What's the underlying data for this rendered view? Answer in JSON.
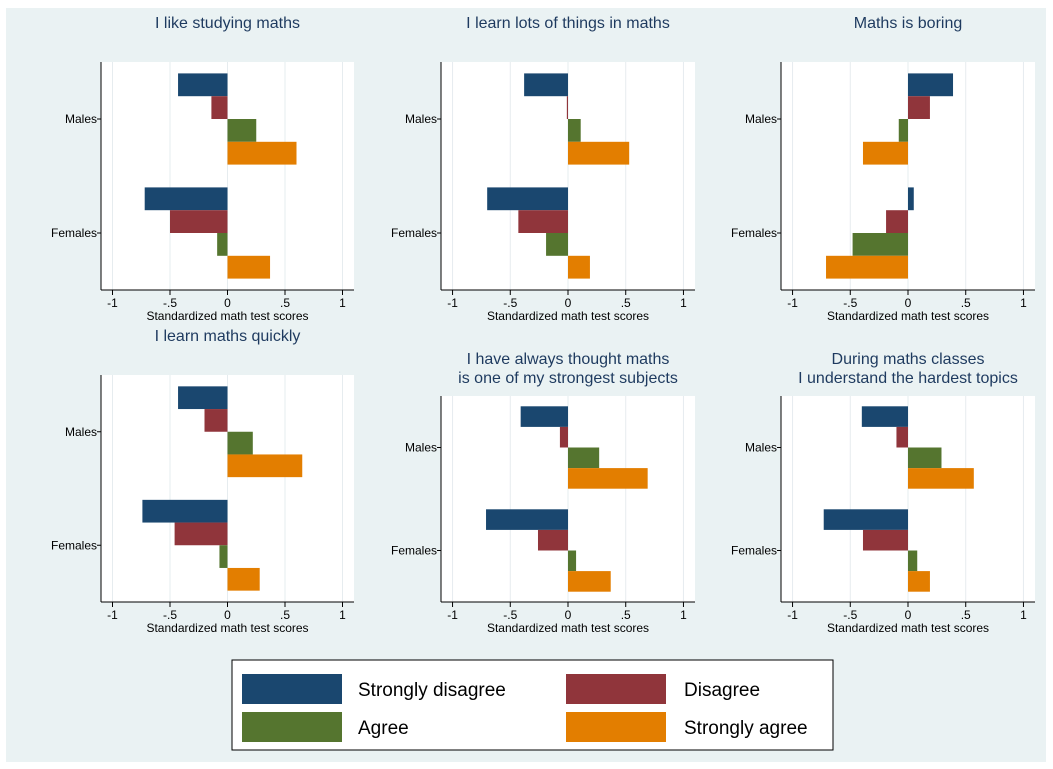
{
  "colors": {
    "background": "#eaf2f3",
    "plot_background": "#ffffff",
    "strongly_disagree": "#1a476f",
    "disagree": "#90353b",
    "agree": "#55752f",
    "strongly_agree": "#e37e00",
    "title_text": "#1e3a5f",
    "gridline": "#e6ecef"
  },
  "legend": {
    "items": [
      {
        "key": "strongly_disagree",
        "label": "Strongly disagree"
      },
      {
        "key": "disagree",
        "label": "Disagree"
      },
      {
        "key": "agree",
        "label": "Agree"
      },
      {
        "key": "strongly_agree",
        "label": "Strongly agree"
      }
    ]
  },
  "chart_data": [
    {
      "type": "bar",
      "orientation": "horizontal",
      "title": "I like studying maths",
      "xlabel": "Standardized math test scores",
      "xlim": [
        -1.1,
        1.1
      ],
      "xticks": [
        {
          "v": -1,
          "label": "-1"
        },
        {
          "v": -0.5,
          "label": "-.5"
        },
        {
          "v": 0,
          "label": "0"
        },
        {
          "v": 0.5,
          "label": ".5"
        },
        {
          "v": 1,
          "label": "1"
        }
      ],
      "categories": [
        "Males",
        "Females"
      ],
      "series": [
        {
          "name": "Strongly disagree",
          "key": "strongly_disagree",
          "values": [
            -0.43,
            -0.72
          ]
        },
        {
          "name": "Disagree",
          "key": "disagree",
          "values": [
            -0.14,
            -0.5
          ]
        },
        {
          "name": "Agree",
          "key": "agree",
          "values": [
            0.25,
            -0.09
          ]
        },
        {
          "name": "Strongly agree",
          "key": "strongly_agree",
          "values": [
            0.6,
            0.37
          ]
        }
      ]
    },
    {
      "type": "bar",
      "orientation": "horizontal",
      "title": "I learn lots of things in maths",
      "xlabel": "Standardized math test scores",
      "xlim": [
        -1.1,
        1.1
      ],
      "xticks": [
        {
          "v": -1,
          "label": "-1"
        },
        {
          "v": -0.5,
          "label": "-.5"
        },
        {
          "v": 0,
          "label": "0"
        },
        {
          "v": 0.5,
          "label": ".5"
        },
        {
          "v": 1,
          "label": "1"
        }
      ],
      "categories": [
        "Males",
        "Females"
      ],
      "series": [
        {
          "name": "Strongly disagree",
          "key": "strongly_disagree",
          "values": [
            -0.38,
            -0.7
          ]
        },
        {
          "name": "Disagree",
          "key": "disagree",
          "values": [
            -0.01,
            -0.43
          ]
        },
        {
          "name": "Agree",
          "key": "agree",
          "values": [
            0.11,
            -0.19
          ]
        },
        {
          "name": "Strongly agree",
          "key": "strongly_agree",
          "values": [
            0.53,
            0.19
          ]
        }
      ]
    },
    {
      "type": "bar",
      "orientation": "horizontal",
      "title": "Maths is boring",
      "xlabel": "Standardized math test scores",
      "xlim": [
        -1.1,
        1.1
      ],
      "xticks": [
        {
          "v": -1,
          "label": "-1"
        },
        {
          "v": -0.5,
          "label": "-.5"
        },
        {
          "v": 0,
          "label": "0"
        },
        {
          "v": 0.5,
          "label": ".5"
        },
        {
          "v": 1,
          "label": "1"
        }
      ],
      "categories": [
        "Males",
        "Females"
      ],
      "series": [
        {
          "name": "Strongly disagree",
          "key": "strongly_disagree",
          "values": [
            0.39,
            0.05
          ]
        },
        {
          "name": "Disagree",
          "key": "disagree",
          "values": [
            0.19,
            -0.19
          ]
        },
        {
          "name": "Agree",
          "key": "agree",
          "values": [
            -0.08,
            -0.48
          ]
        },
        {
          "name": "Strongly agree",
          "key": "strongly_agree",
          "values": [
            -0.39,
            -0.71
          ]
        }
      ]
    },
    {
      "type": "bar",
      "orientation": "horizontal",
      "title": "I learn maths quickly",
      "xlabel": "Standardized math test scores",
      "xlim": [
        -1.1,
        1.1
      ],
      "xticks": [
        {
          "v": -1,
          "label": "-1"
        },
        {
          "v": -0.5,
          "label": "-.5"
        },
        {
          "v": 0,
          "label": "0"
        },
        {
          "v": 0.5,
          "label": ".5"
        },
        {
          "v": 1,
          "label": "1"
        }
      ],
      "categories": [
        "Males",
        "Females"
      ],
      "series": [
        {
          "name": "Strongly disagree",
          "key": "strongly_disagree",
          "values": [
            -0.43,
            -0.74
          ]
        },
        {
          "name": "Disagree",
          "key": "disagree",
          "values": [
            -0.2,
            -0.46
          ]
        },
        {
          "name": "Agree",
          "key": "agree",
          "values": [
            0.22,
            -0.07
          ]
        },
        {
          "name": "Strongly agree",
          "key": "strongly_agree",
          "values": [
            0.65,
            0.28
          ]
        }
      ]
    },
    {
      "type": "bar",
      "orientation": "horizontal",
      "title": "I have always thought maths\nis one of my strongest subjects",
      "xlabel": "Standardized math test scores",
      "xlim": [
        -1.1,
        1.1
      ],
      "xticks": [
        {
          "v": -1,
          "label": "-1"
        },
        {
          "v": -0.5,
          "label": "-.5"
        },
        {
          "v": 0,
          "label": "0"
        },
        {
          "v": 0.5,
          "label": ".5"
        },
        {
          "v": 1,
          "label": "1"
        }
      ],
      "categories": [
        "Males",
        "Females"
      ],
      "series": [
        {
          "name": "Strongly disagree",
          "key": "strongly_disagree",
          "values": [
            -0.41,
            -0.71
          ]
        },
        {
          "name": "Disagree",
          "key": "disagree",
          "values": [
            -0.07,
            -0.26
          ]
        },
        {
          "name": "Agree",
          "key": "agree",
          "values": [
            0.27,
            0.07
          ]
        },
        {
          "name": "Strongly agree",
          "key": "strongly_agree",
          "values": [
            0.69,
            0.37
          ]
        }
      ]
    },
    {
      "type": "bar",
      "orientation": "horizontal",
      "title": "During maths classes\nI understand the hardest topics",
      "xlabel": "Standardized math test scores",
      "xlim": [
        -1.1,
        1.1
      ],
      "xticks": [
        {
          "v": -1,
          "label": "-1"
        },
        {
          "v": -0.5,
          "label": "-.5"
        },
        {
          "v": 0,
          "label": "0"
        },
        {
          "v": 0.5,
          "label": ".5"
        },
        {
          "v": 1,
          "label": "1"
        }
      ],
      "categories": [
        "Males",
        "Females"
      ],
      "series": [
        {
          "name": "Strongly disagree",
          "key": "strongly_disagree",
          "values": [
            -0.4,
            -0.73
          ]
        },
        {
          "name": "Disagree",
          "key": "disagree",
          "values": [
            -0.1,
            -0.39
          ]
        },
        {
          "name": "Agree",
          "key": "agree",
          "values": [
            0.29,
            0.08
          ]
        },
        {
          "name": "Strongly agree",
          "key": "strongly_agree",
          "values": [
            0.57,
            0.19
          ]
        }
      ]
    }
  ]
}
